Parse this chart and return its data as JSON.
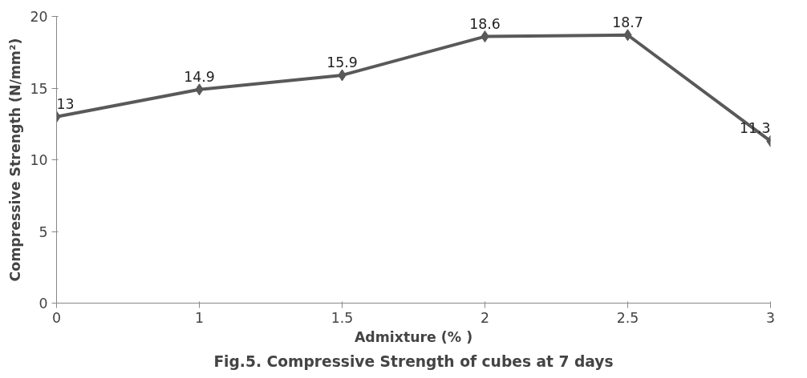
{
  "chart_data": {
    "type": "line",
    "title": "Fig.5. Compressive Strength of cubes at 7 days",
    "xlabel": "Admixture (% )",
    "ylabel": "Compressive Strength (N/mm²)",
    "categories": [
      "0",
      "1",
      "1.5",
      "2",
      "2.5",
      "3"
    ],
    "values": [
      13,
      14.9,
      15.9,
      18.6,
      18.7,
      11.3
    ],
    "color": "#595959",
    "marker": "diamond",
    "line_style": "solid",
    "ylim": [
      0,
      20
    ],
    "yticks": [
      0,
      5,
      10,
      15,
      20
    ],
    "grid": false,
    "data_labels": true
  }
}
